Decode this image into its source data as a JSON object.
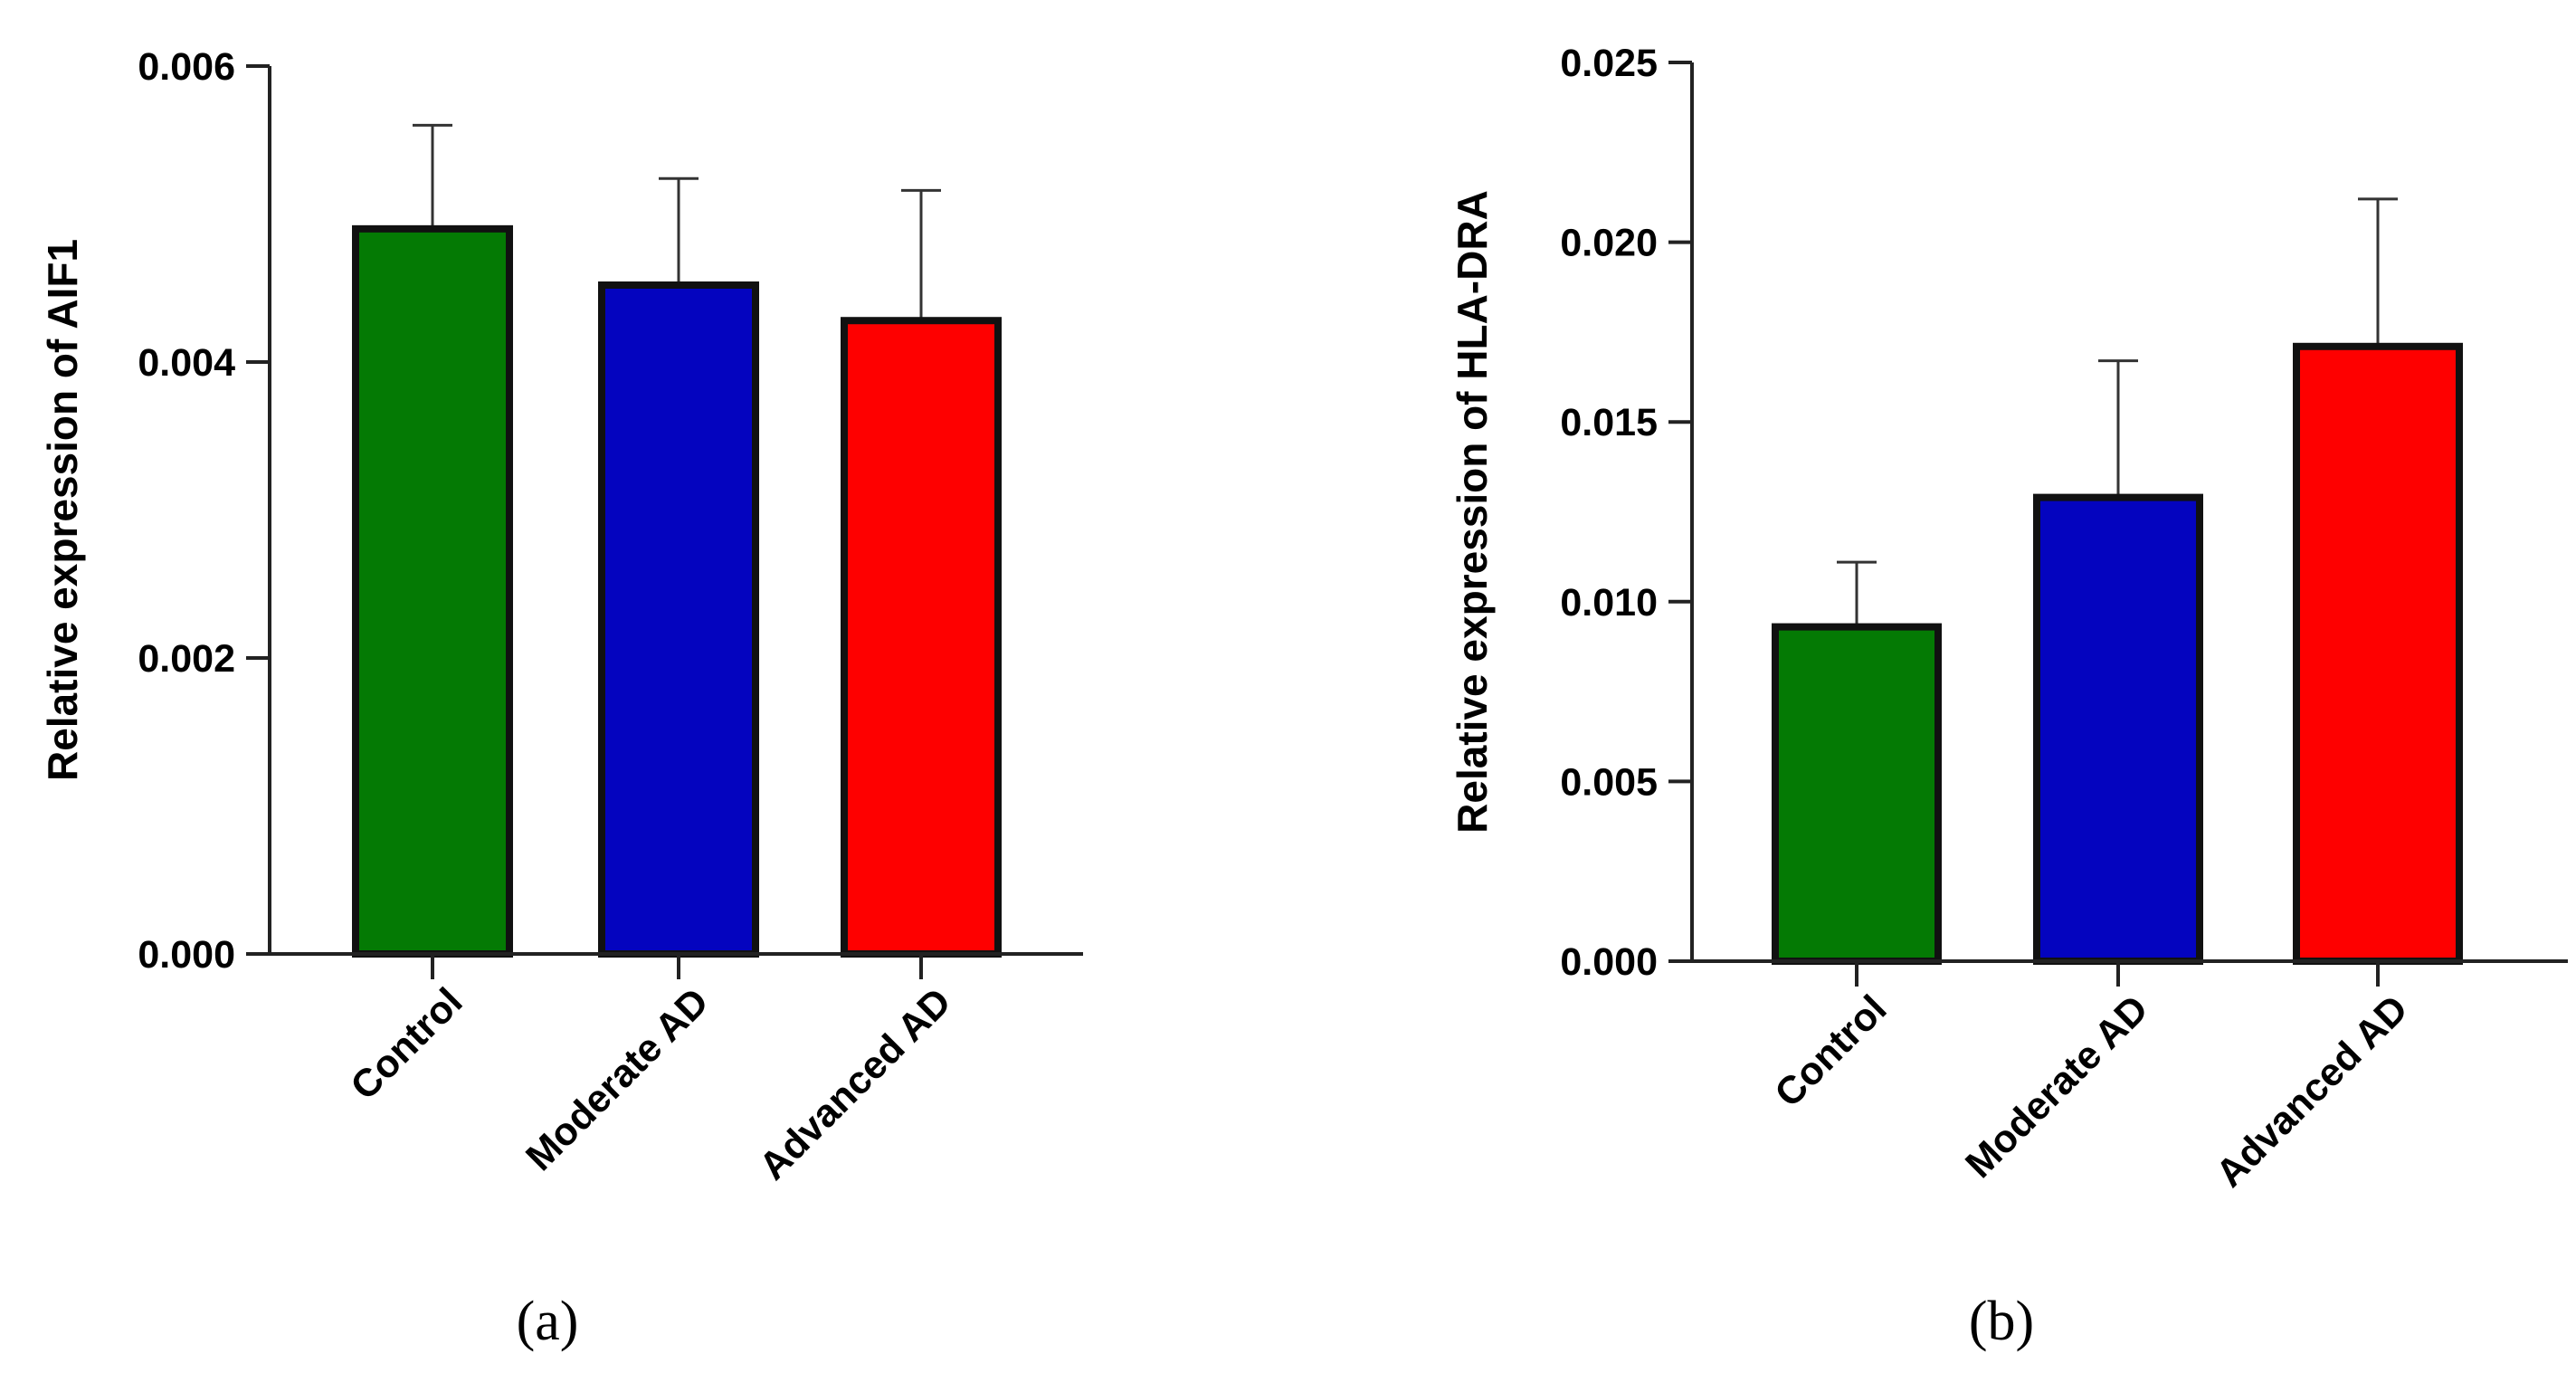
{
  "chart_data": [
    {
      "type": "bar",
      "panel_label": "(a)",
      "title": "",
      "xlabel": "",
      "ylabel": "Relative expression of AIF1",
      "categories": [
        "Control",
        "Moderate AD",
        "Advanced AD"
      ],
      "values": [
        0.0049,
        0.00452,
        0.00428
      ],
      "error_upper": [
        0.0007,
        0.00072,
        0.00088
      ],
      "ylim": [
        0,
        0.006
      ],
      "yticks": [
        0,
        0.002,
        0.004,
        0.006
      ],
      "ytick_labels": [
        "0.000",
        "0.002",
        "0.004",
        "0.006"
      ],
      "colors": [
        "#047a04",
        "#0404bf",
        "#fe0000"
      ],
      "grid": false
    },
    {
      "type": "bar",
      "panel_label": "(b)",
      "title": "",
      "xlabel": "",
      "ylabel": "Relative expression of HLA-DRA",
      "categories": [
        "Control",
        "Moderate AD",
        "Advanced AD"
      ],
      "values": [
        0.0093,
        0.0129,
        0.0171
      ],
      "error_upper": [
        0.0018,
        0.0038,
        0.0041
      ],
      "ylim": [
        0,
        0.025
      ],
      "yticks": [
        0,
        0.005,
        0.01,
        0.015,
        0.02,
        0.025
      ],
      "ytick_labels": [
        "0.000",
        "0.005",
        "0.010",
        "0.015",
        "0.020",
        "0.025"
      ],
      "colors": [
        "#047a04",
        "#0404bf",
        "#fe0000"
      ],
      "grid": false
    }
  ]
}
